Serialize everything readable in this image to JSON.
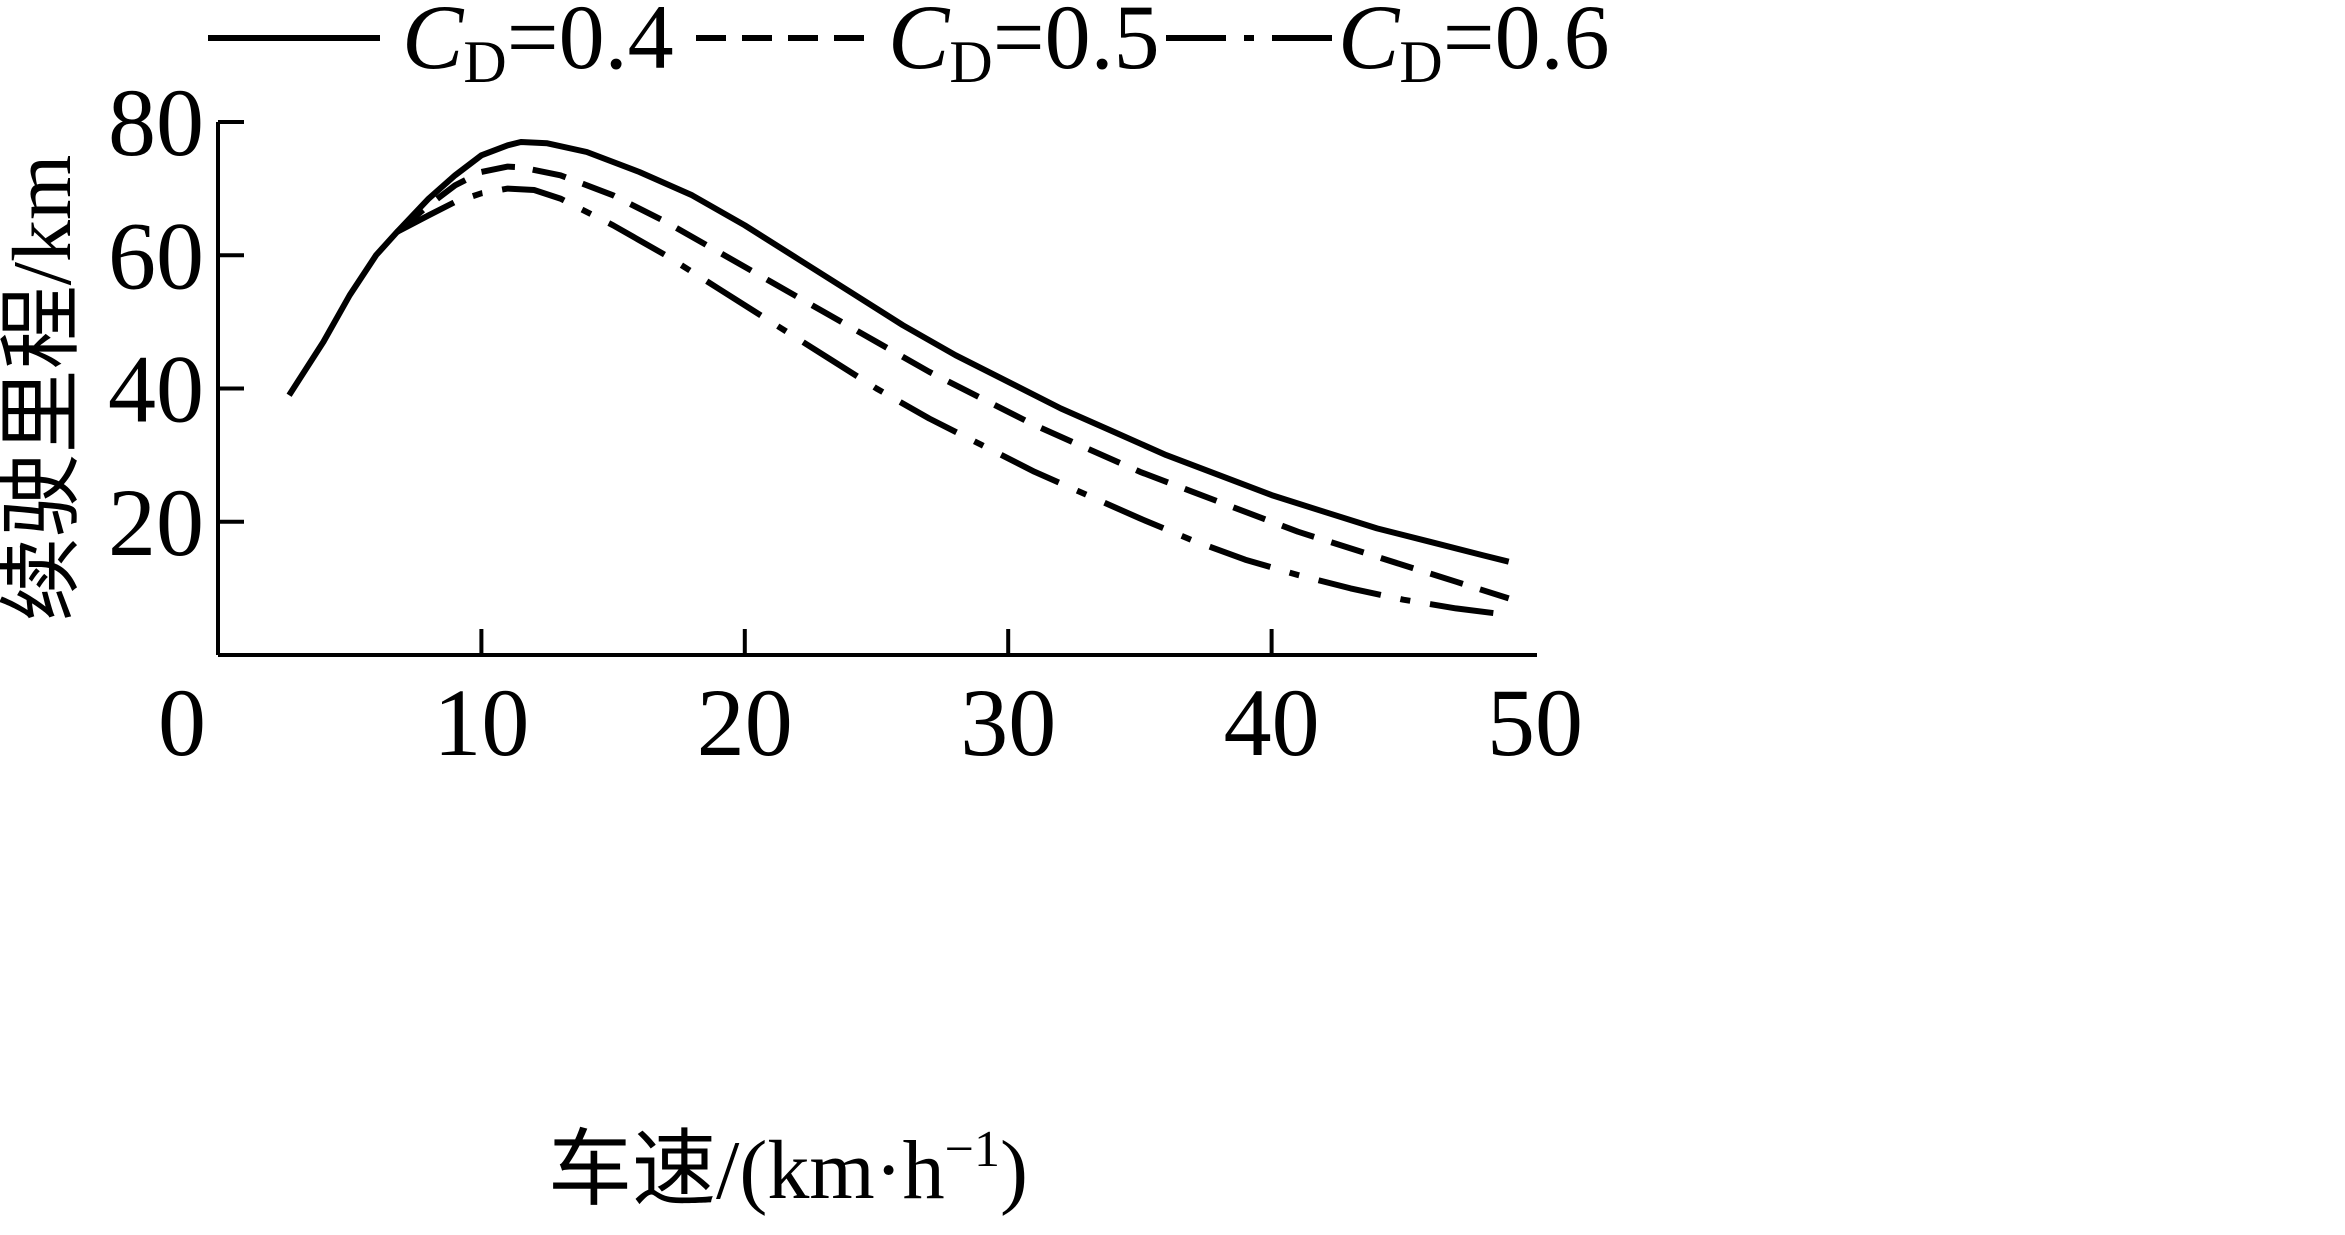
{
  "chart_data": {
    "type": "line",
    "title": "",
    "xlabel": "车速/(km·h",
    "xlabel_sup": "−1",
    "xlabel_close": ")",
    "ylabel": "续驶里程/km",
    "xlim": [
      0,
      50
    ],
    "ylim": [
      0,
      80
    ],
    "x_ticks": [
      0,
      10,
      20,
      30,
      40,
      50
    ],
    "y_ticks": [
      20,
      40,
      60,
      80
    ],
    "grid": false,
    "legend_position": "top",
    "series": [
      {
        "name": "CD=0.4",
        "legend_main": "C",
        "legend_sub": "D",
        "legend_value": "=0.4",
        "style": "solid",
        "color": "#000000",
        "points": [
          [
            2.7,
            39
          ],
          [
            4,
            47
          ],
          [
            5,
            54
          ],
          [
            6,
            60
          ],
          [
            6.8,
            63.5
          ],
          [
            8,
            68.5
          ],
          [
            9,
            72
          ],
          [
            10,
            75
          ],
          [
            11,
            76.5
          ],
          [
            11.5,
            77
          ],
          [
            12.5,
            76.8
          ],
          [
            14,
            75.5
          ],
          [
            16,
            72.5
          ],
          [
            18,
            69
          ],
          [
            20,
            64.5
          ],
          [
            22,
            59.5
          ],
          [
            24,
            54.5
          ],
          [
            26,
            49.5
          ],
          [
            28,
            45
          ],
          [
            30,
            41
          ],
          [
            32,
            37
          ],
          [
            34,
            33.5
          ],
          [
            36,
            30
          ],
          [
            38,
            27
          ],
          [
            40,
            24
          ],
          [
            42,
            21.5
          ],
          [
            44,
            19
          ],
          [
            46,
            17
          ],
          [
            48,
            15
          ],
          [
            49,
            14
          ]
        ]
      },
      {
        "name": "CD=0.5",
        "legend_main": "C",
        "legend_sub": "D",
        "legend_value": "=0.5",
        "style": "dashed",
        "color": "#000000",
        "points": [
          [
            6.8,
            63.5
          ],
          [
            8,
            67.5
          ],
          [
            9,
            70.5
          ],
          [
            10,
            72.5
          ],
          [
            11,
            73.3
          ],
          [
            11.5,
            73.2
          ],
          [
            13,
            72
          ],
          [
            15,
            69
          ],
          [
            17,
            65
          ],
          [
            19,
            60.5
          ],
          [
            21,
            56
          ],
          [
            23,
            51.5
          ],
          [
            25,
            47
          ],
          [
            27,
            42.5
          ],
          [
            29,
            38.5
          ],
          [
            31,
            34.5
          ],
          [
            33,
            31
          ],
          [
            35,
            27.5
          ],
          [
            37,
            24.5
          ],
          [
            39,
            21.5
          ],
          [
            41,
            18.5
          ],
          [
            43,
            16
          ],
          [
            45,
            13.5
          ],
          [
            47,
            11
          ],
          [
            49,
            8.5
          ]
        ]
      },
      {
        "name": "CD=0.6",
        "legend_main": "C",
        "legend_sub": "D",
        "legend_value": "=0.6",
        "style": "dashdot",
        "color": "#000000",
        "points": [
          [
            6.8,
            63.5
          ],
          [
            8,
            66
          ],
          [
            9,
            68
          ],
          [
            10,
            69.3
          ],
          [
            11,
            70
          ],
          [
            12,
            69.8
          ],
          [
            13,
            68.5
          ],
          [
            15,
            64.5
          ],
          [
            17,
            60
          ],
          [
            19,
            55
          ],
          [
            21,
            50
          ],
          [
            23,
            45
          ],
          [
            25,
            40
          ],
          [
            27,
            35.5
          ],
          [
            29,
            31.5
          ],
          [
            31,
            27.5
          ],
          [
            33,
            24
          ],
          [
            35,
            20.5
          ],
          [
            37,
            17.2
          ],
          [
            39,
            14.3
          ],
          [
            41,
            12
          ],
          [
            43,
            10
          ],
          [
            45,
            8.3
          ],
          [
            47,
            7
          ],
          [
            49,
            6
          ]
        ]
      }
    ]
  }
}
